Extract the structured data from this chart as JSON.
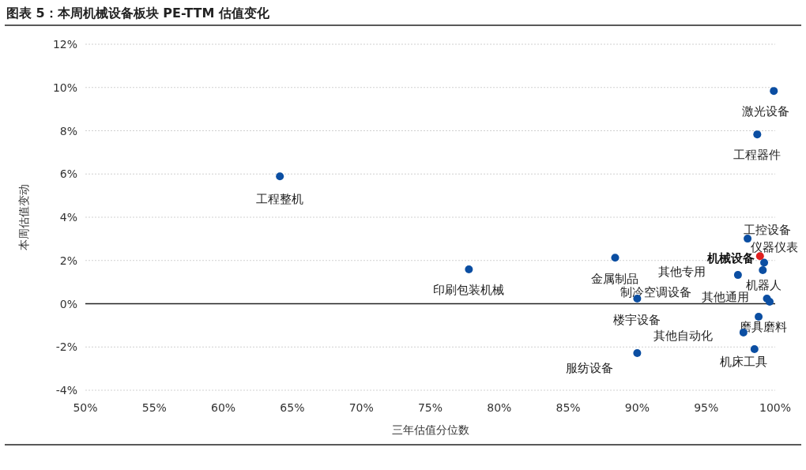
{
  "chart_data": {
    "type": "scatter",
    "title": "图表 5：本周机械设备板块 PE-TTM 估值变化",
    "xlabel": "三年估值分位数",
    "ylabel": "本周估值变动",
    "series": [
      {
        "color": "#0b4ea2",
        "x": [
          99.9,
          98.7,
          64.1,
          77.8,
          88.4,
          98.0,
          99.2,
          97.3,
          99.4,
          99.6,
          90.0,
          97.7,
          98.8,
          98.5,
          90.0,
          99.1
        ],
        "values": [
          9.84,
          7.83,
          5.89,
          1.59,
          2.13,
          3.01,
          1.9,
          1.33,
          0.24,
          0.09,
          0.24,
          -1.33,
          -0.6,
          -2.1,
          -2.28,
          1.55
        ]
      },
      {
        "name": "机械设备",
        "color": "#e02020",
        "x": [
          98.9
        ],
        "values": [
          2.2
        ]
      }
    ],
    "annotations": [
      {
        "text": "激光设备",
        "x": 99.9,
        "y": 9.84
      },
      {
        "text": "工程器件",
        "x": 98.7,
        "y": 7.83
      },
      {
        "text": "工程整机",
        "x": 64.1,
        "y": 5.89
      },
      {
        "text": "印刷包装机械",
        "x": 77.8,
        "y": 1.59
      },
      {
        "text": "金属制品",
        "x": 88.4,
        "y": 2.13
      },
      {
        "text": "工控设备",
        "x": 98.0,
        "y": 3.01
      },
      {
        "text": "仪器仪表",
        "x": 99.2,
        "y": 1.9
      },
      {
        "text": "其他专用",
        "x": 97.3,
        "y": 1.33
      },
      {
        "text": "机器人",
        "x": 99.4,
        "y": 0.24
      },
      {
        "text": "其他通用",
        "x": 99.6,
        "y": 0.09
      },
      {
        "text": "制冷空调设备",
        "x": 90.0,
        "y": 0.24
      },
      {
        "text": "楼宇设备",
        "x": 90.0,
        "y": 0.24
      },
      {
        "text": "其他自动化",
        "x": 97.7,
        "y": -1.33
      },
      {
        "text": "磨具磨料",
        "x": 98.8,
        "y": -0.6
      },
      {
        "text": "机床工具",
        "x": 98.5,
        "y": -2.1
      },
      {
        "text": "服纺设备",
        "x": 90.0,
        "y": -2.28
      }
    ],
    "xlim": [
      50,
      100
    ],
    "ylim": [
      -4,
      12
    ],
    "xticks": [
      {
        "value": 50,
        "label": "50%"
      },
      {
        "value": 55,
        "label": "55%"
      },
      {
        "value": 60,
        "label": "60%"
      },
      {
        "value": 65,
        "label": "65%"
      },
      {
        "value": 70,
        "label": "70%"
      },
      {
        "value": 75,
        "label": "75%"
      },
      {
        "value": 80,
        "label": "80%"
      },
      {
        "value": 85,
        "label": "85%"
      },
      {
        "value": 90,
        "label": "90%"
      },
      {
        "value": 95,
        "label": "95%"
      },
      {
        "value": 100,
        "label": "100%"
      }
    ],
    "yticks": [
      {
        "value": -4,
        "label": "-4%"
      },
      {
        "value": -2,
        "label": "-2%"
      },
      {
        "value": 0,
        "label": "0%"
      },
      {
        "value": 2,
        "label": "2%"
      },
      {
        "value": 4,
        "label": "4%"
      },
      {
        "value": 6,
        "label": "6%"
      },
      {
        "value": 8,
        "label": "8%"
      },
      {
        "value": 10,
        "label": "10%"
      },
      {
        "value": 12,
        "label": "12%"
      }
    ],
    "grid": "y",
    "marker": "circle"
  }
}
